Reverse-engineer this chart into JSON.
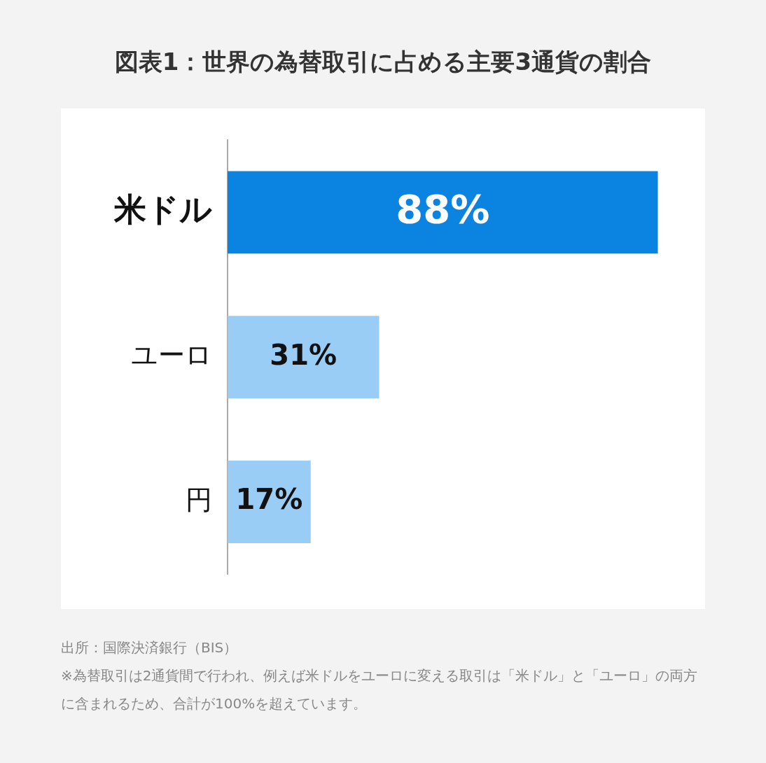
{
  "chart_data": {
    "type": "bar",
    "orientation": "horizontal",
    "title": "図表1：世界の為替取引に占める主要3通貨の割合",
    "categories": [
      "米ドル",
      "ユーロ",
      "円"
    ],
    "values": [
      88,
      31,
      17
    ],
    "colors": [
      "#0a84e0",
      "#9acdf5",
      "#9acdf5"
    ],
    "value_labels": [
      "88%",
      "31%",
      "17%"
    ],
    "tick_labels": "y",
    "annotations": [
      "出所：国際決済銀行（BIS）",
      "※為替取引は2通貨間で行われ、例えば米ドルをユーロに変える取引は「米ドル」と「ユーロ」の両方に含まれるため、合計が100%を超えています。"
    ]
  }
}
